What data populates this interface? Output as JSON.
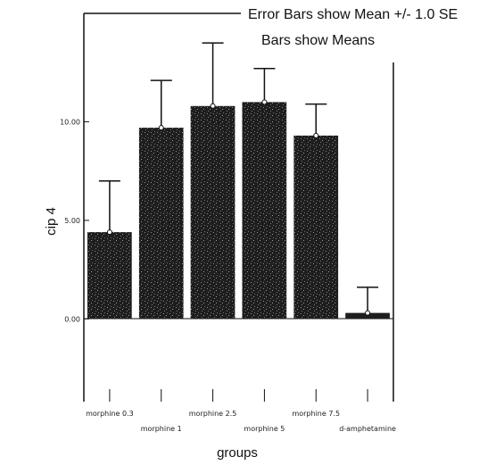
{
  "legend": {
    "error_bars": "Error Bars show Mean +/- 1.0 SE",
    "bars": "Bars show Means"
  },
  "chart_data": {
    "type": "bar",
    "categories": [
      "morphine 0.3",
      "morphine 1",
      "morphine 2.5",
      "morphine 5",
      "morphine 7.5",
      "d-amphetamine"
    ],
    "values": [
      4.4,
      9.7,
      10.8,
      11.0,
      9.3,
      0.3
    ],
    "errors": [
      2.6,
      2.4,
      3.2,
      1.7,
      1.6,
      1.3
    ],
    "ylabel": "cip 4",
    "xlabel": "groups",
    "ylim": [
      -4.2,
      15.5
    ],
    "yticks": [
      0,
      5,
      10
    ],
    "ytick_labels": [
      "0.00",
      "5.00",
      "10.00"
    ],
    "bar_color": "#1e1e1e"
  }
}
